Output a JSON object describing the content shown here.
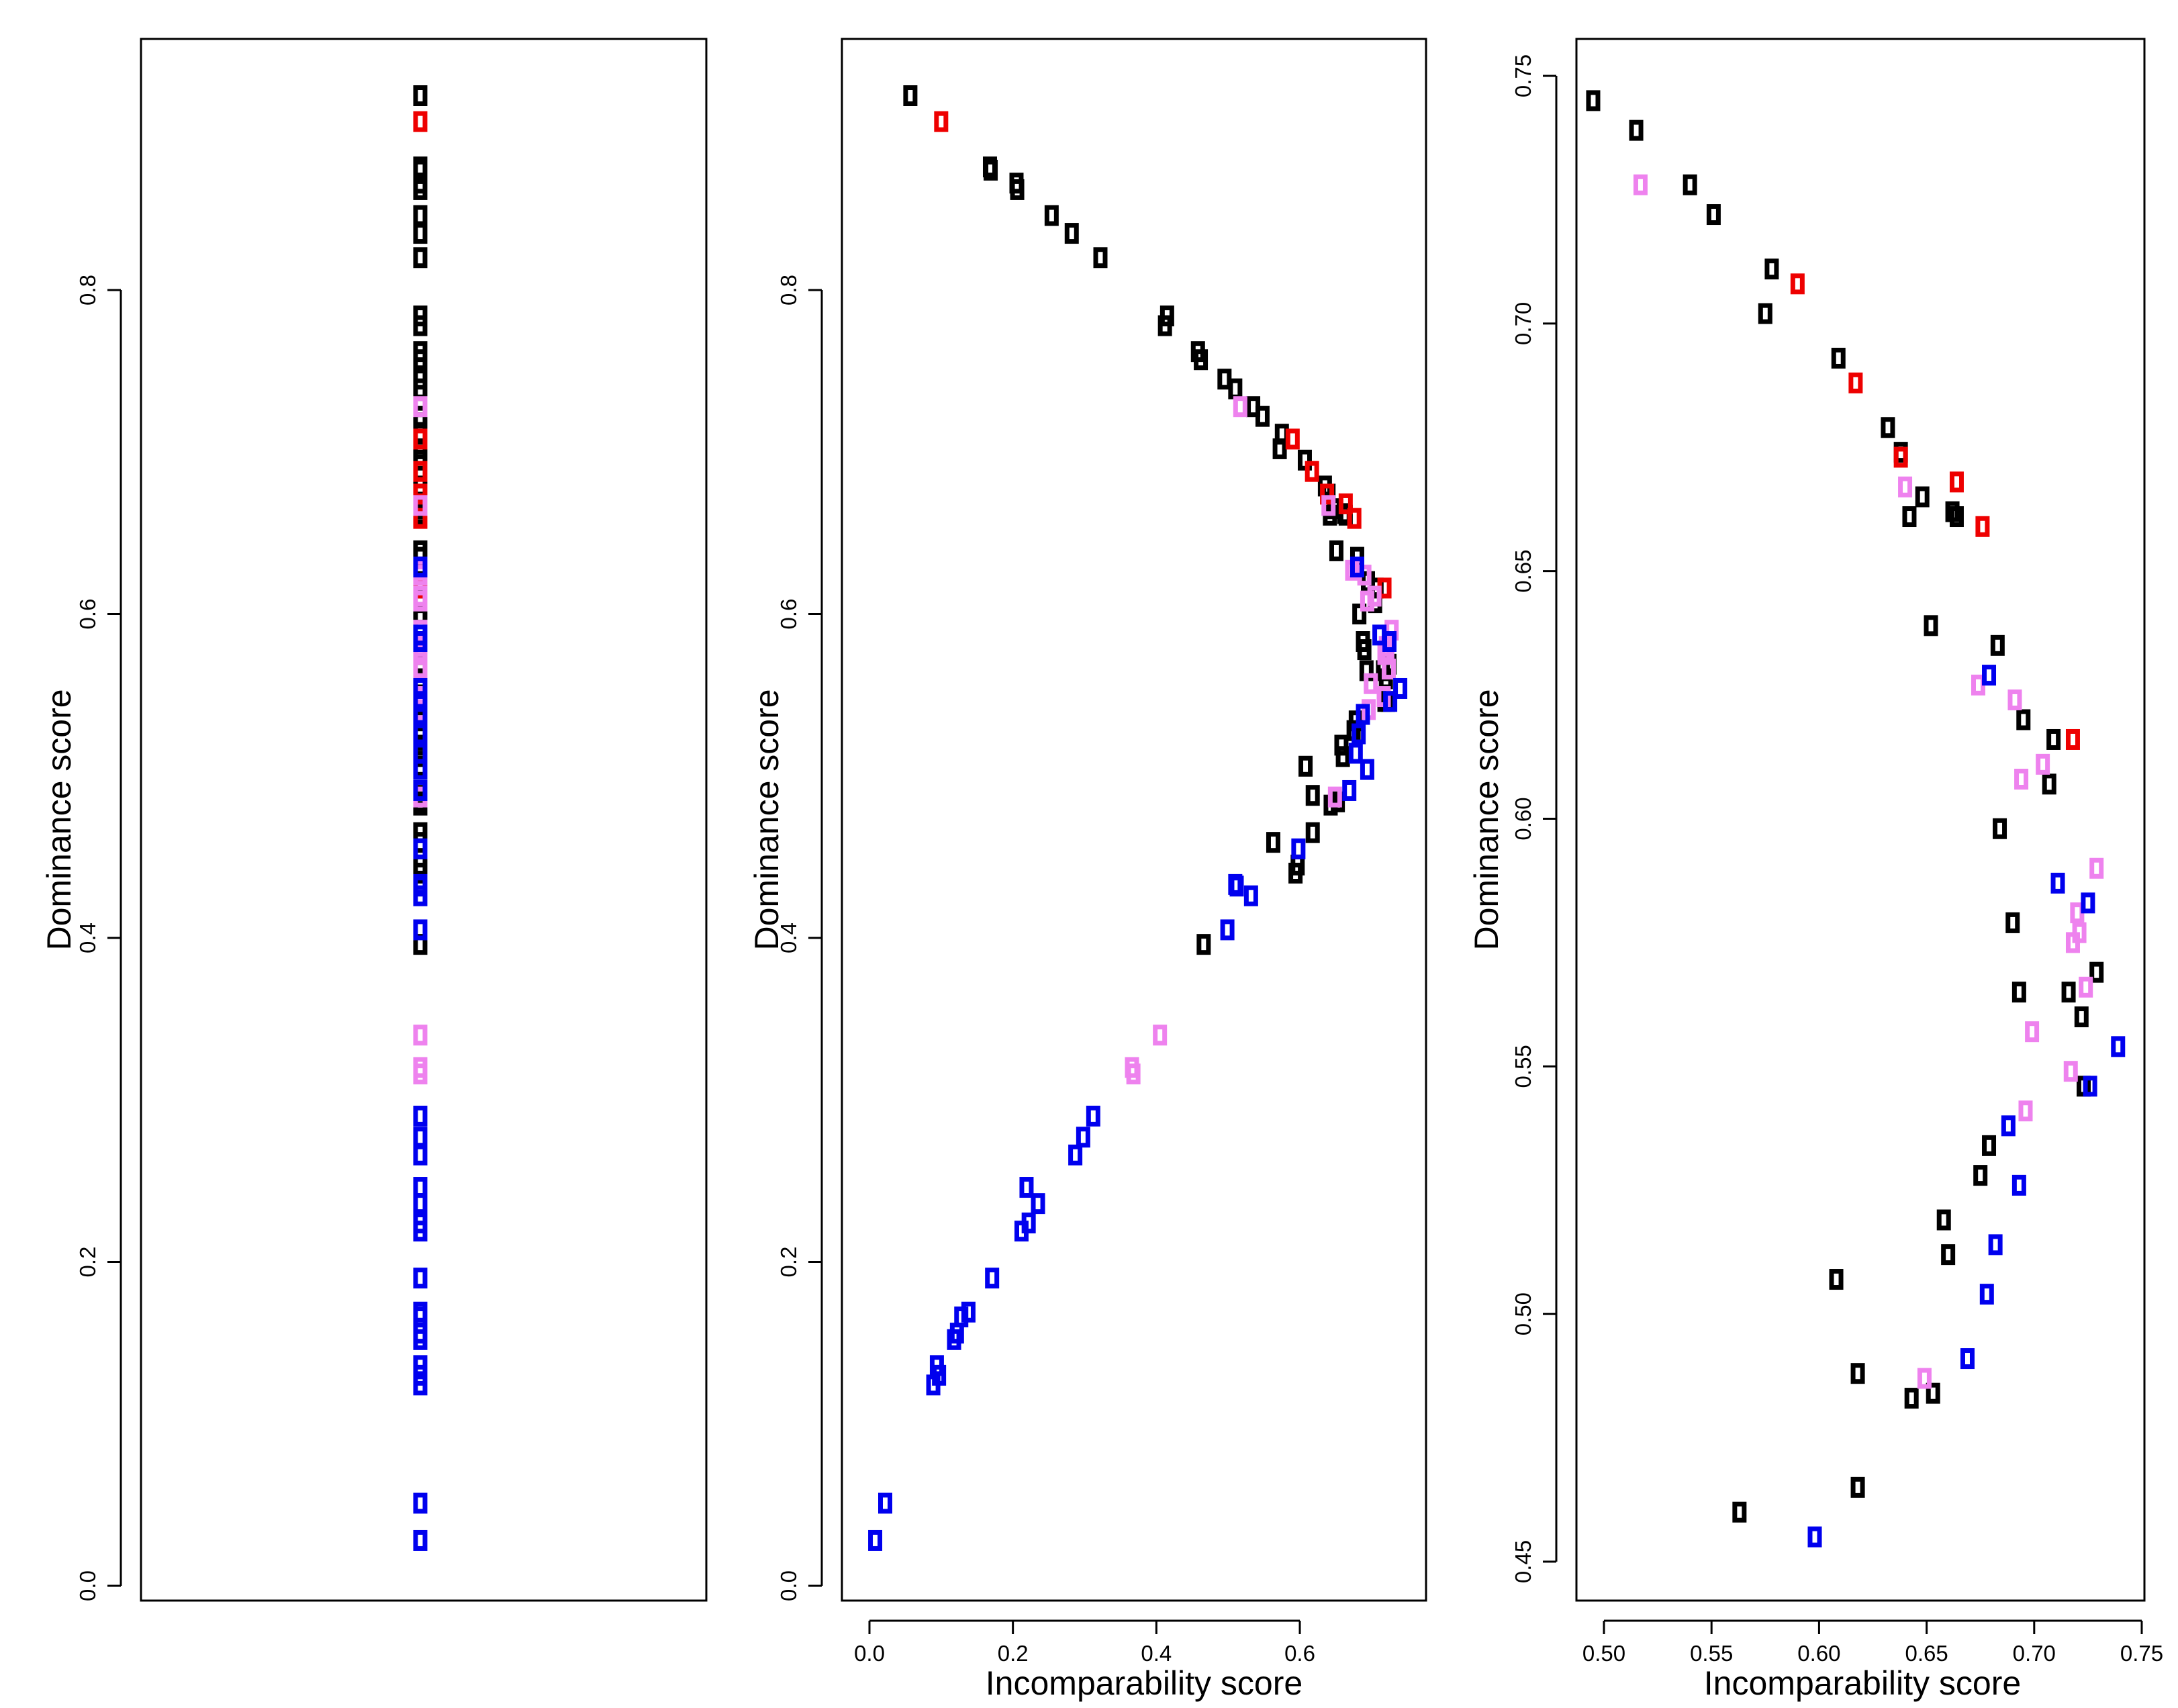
{
  "colors": {
    "black": "#000000",
    "red": "#ee0000",
    "violet": "#ee82ee",
    "blue": "#0000ee"
  },
  "chart_data": [
    {
      "type": "scatter",
      "panel": "left",
      "title": "",
      "xlabel": "",
      "ylabel": "Dominance score",
      "ylim": [
        0.0,
        0.95
      ],
      "yticks": [
        "0.0",
        "0.2",
        "0.4",
        "0.6",
        "0.8"
      ],
      "x_constant": 0.5,
      "note": "All points share a single x position; y values match the middle panel dominance scores.",
      "series": [
        {
          "name": "black",
          "color": "black",
          "y": [
            0.92,
            0.876,
            0.874,
            0.866,
            0.862,
            0.846,
            0.835,
            0.82,
            0.784,
            0.778,
            0.762,
            0.757,
            0.745,
            0.739,
            0.728,
            0.722,
            0.711,
            0.702,
            0.695,
            0.679,
            0.674,
            0.665,
            0.661,
            0.662,
            0.661,
            0.639,
            0.635,
            0.62,
            0.616,
            0.607,
            0.6,
            0.583,
            0.578,
            0.569,
            0.565,
            0.565,
            0.56,
            0.546,
            0.546,
            0.534,
            0.528,
            0.519,
            0.512,
            0.506,
            0.488,
            0.484,
            0.482,
            0.465,
            0.459,
            0.445,
            0.44,
            0.396
          ]
        },
        {
          "name": "red",
          "color": "red",
          "y": [
            0.904,
            0.708,
            0.688,
            0.674,
            0.668,
            0.659,
            0.616
          ]
        },
        {
          "name": "violet",
          "color": "violet",
          "y": [
            0.728,
            0.667,
            0.627,
            0.624,
            0.611,
            0.608,
            0.59,
            0.58,
            0.577,
            0.575,
            0.566,
            0.557,
            0.549,
            0.541,
            0.487,
            0.34,
            0.32,
            0.316
          ]
        },
        {
          "name": "blue",
          "color": "blue",
          "y": [
            0.629,
            0.587,
            0.583,
            0.554,
            0.546,
            0.538,
            0.526,
            0.514,
            0.504,
            0.491,
            0.455,
            0.433,
            0.432,
            0.426,
            0.405,
            0.29,
            0.277,
            0.266,
            0.246,
            0.236,
            0.224,
            0.219,
            0.19,
            0.169,
            0.166,
            0.156,
            0.152,
            0.136,
            0.13,
            0.124,
            0.051,
            0.028
          ]
        }
      ]
    },
    {
      "type": "scatter",
      "panel": "middle",
      "title": "",
      "xlabel": "Incomparability score",
      "ylabel": "Dominance score",
      "xlim": [
        0.0,
        0.76
      ],
      "ylim": [
        0.0,
        0.95
      ],
      "xticks": [
        "0.0",
        "0.2",
        "0.4",
        "0.6"
      ],
      "yticks": [
        "0.0",
        "0.2",
        "0.4",
        "0.6",
        "0.8"
      ],
      "series": [
        {
          "name": "black",
          "color": "black",
          "points": [
            [
              0.057,
              0.92
            ],
            [
              0.168,
              0.876
            ],
            [
              0.169,
              0.874
            ],
            [
              0.205,
              0.866
            ],
            [
              0.206,
              0.862
            ],
            [
              0.254,
              0.846
            ],
            [
              0.282,
              0.835
            ],
            [
              0.322,
              0.82
            ],
            [
              0.415,
              0.784
            ],
            [
              0.412,
              0.778
            ],
            [
              0.458,
              0.762
            ],
            [
              0.462,
              0.757
            ],
            [
              0.495,
              0.745
            ],
            [
              0.51,
              0.739
            ],
            [
              0.535,
              0.728
            ],
            [
              0.548,
              0.722
            ],
            [
              0.575,
              0.711
            ],
            [
              0.572,
              0.702
            ],
            [
              0.607,
              0.695
            ],
            [
              0.635,
              0.679
            ],
            [
              0.64,
              0.674
            ],
            [
              0.648,
              0.665
            ],
            [
              0.642,
              0.661
            ],
            [
              0.662,
              0.662
            ],
            [
              0.664,
              0.661
            ],
            [
              0.651,
              0.639
            ],
            [
              0.68,
              0.635
            ],
            [
              0.695,
              0.62
            ],
            [
              0.707,
              0.616
            ],
            [
              0.705,
              0.607
            ],
            [
              0.683,
              0.6
            ],
            [
              0.688,
              0.583
            ],
            [
              0.69,
              0.578
            ],
            [
              0.725,
              0.569
            ],
            [
              0.716,
              0.565
            ],
            [
              0.693,
              0.565
            ],
            [
              0.72,
              0.56
            ],
            [
              0.723,
              0.546
            ],
            [
              0.718,
              0.546
            ],
            [
              0.678,
              0.534
            ],
            [
              0.675,
              0.528
            ],
            [
              0.658,
              0.519
            ],
            [
              0.66,
              0.512
            ],
            [
              0.608,
              0.506
            ],
            [
              0.618,
              0.488
            ],
            [
              0.653,
              0.484
            ],
            [
              0.643,
              0.482
            ],
            [
              0.618,
              0.465
            ],
            [
              0.563,
              0.459
            ],
            [
              0.597,
              0.445
            ],
            [
              0.594,
              0.44
            ],
            [
              0.466,
              0.396
            ]
          ]
        },
        {
          "name": "red",
          "color": "red",
          "points": [
            [
              0.1,
              0.904
            ],
            [
              0.59,
              0.708
            ],
            [
              0.617,
              0.688
            ],
            [
              0.638,
              0.674
            ],
            [
              0.664,
              0.668
            ],
            [
              0.676,
              0.659
            ],
            [
              0.718,
              0.616
            ]
          ]
        },
        {
          "name": "violet",
          "color": "violet",
          "points": [
            [
              0.517,
              0.728
            ],
            [
              0.64,
              0.667
            ],
            [
              0.673,
              0.627
            ],
            [
              0.69,
              0.624
            ],
            [
              0.704,
              0.611
            ],
            [
              0.694,
              0.608
            ],
            [
              0.728,
              0.59
            ],
            [
              0.72,
              0.58
            ],
            [
              0.722,
              0.577
            ],
            [
              0.718,
              0.575
            ],
            [
              0.724,
              0.566
            ],
            [
              0.699,
              0.557
            ],
            [
              0.717,
              0.549
            ],
            [
              0.696,
              0.541
            ],
            [
              0.649,
              0.487
            ],
            [
              0.405,
              0.34
            ],
            [
              0.366,
              0.32
            ],
            [
              0.368,
              0.316
            ]
          ]
        },
        {
          "name": "blue",
          "color": "blue",
          "points": [
            [
              0.68,
              0.629
            ],
            [
              0.711,
              0.587
            ],
            [
              0.725,
              0.583
            ],
            [
              0.74,
              0.554
            ],
            [
              0.726,
              0.546
            ],
            [
              0.688,
              0.538
            ],
            [
              0.682,
              0.526
            ],
            [
              0.678,
              0.514
            ],
            [
              0.694,
              0.504
            ],
            [
              0.669,
              0.491
            ],
            [
              0.598,
              0.455
            ],
            [
              0.51,
              0.433
            ],
            [
              0.512,
              0.432
            ],
            [
              0.532,
              0.426
            ],
            [
              0.499,
              0.405
            ],
            [
              0.312,
              0.29
            ],
            [
              0.298,
              0.277
            ],
            [
              0.287,
              0.266
            ],
            [
              0.219,
              0.246
            ],
            [
              0.235,
              0.236
            ],
            [
              0.222,
              0.224
            ],
            [
              0.212,
              0.219
            ],
            [
              0.171,
              0.19
            ],
            [
              0.138,
              0.169
            ],
            [
              0.128,
              0.166
            ],
            [
              0.122,
              0.156
            ],
            [
              0.118,
              0.152
            ],
            [
              0.094,
              0.136
            ],
            [
              0.097,
              0.13
            ],
            [
              0.089,
              0.124
            ],
            [
              0.022,
              0.051
            ],
            [
              0.008,
              0.028
            ]
          ]
        }
      ]
    },
    {
      "type": "scatter",
      "panel": "right",
      "title": "",
      "xlabel": "Incomparability score",
      "ylabel": "Dominance score",
      "xlim": [
        0.49,
        0.76
      ],
      "ylim": [
        0.445,
        0.755
      ],
      "xticks": [
        "0.50",
        "0.55",
        "0.60",
        "0.65",
        "0.70",
        "0.75"
      ],
      "yticks": [
        "0.45",
        "0.50",
        "0.55",
        "0.60",
        "0.65",
        "0.70",
        "0.75"
      ],
      "series": [
        {
          "name": "black",
          "color": "black",
          "points": [
            [
              0.495,
              0.745
            ],
            [
              0.515,
              0.739
            ],
            [
              0.54,
              0.728
            ],
            [
              0.551,
              0.722
            ],
            [
              0.578,
              0.711
            ],
            [
              0.575,
              0.702
            ],
            [
              0.609,
              0.693
            ],
            [
              0.632,
              0.679
            ],
            [
              0.638,
              0.674
            ],
            [
              0.648,
              0.665
            ],
            [
              0.642,
              0.661
            ],
            [
              0.662,
              0.662
            ],
            [
              0.664,
              0.661
            ],
            [
              0.652,
              0.639
            ],
            [
              0.683,
              0.635
            ],
            [
              0.695,
              0.62
            ],
            [
              0.709,
              0.616
            ],
            [
              0.707,
              0.607
            ],
            [
              0.684,
              0.598
            ],
            [
              0.69,
              0.579
            ],
            [
              0.693,
              0.565
            ],
            [
              0.729,
              0.569
            ],
            [
              0.716,
              0.565
            ],
            [
              0.722,
              0.56
            ],
            [
              0.723,
              0.546
            ],
            [
              0.679,
              0.534
            ],
            [
              0.675,
              0.528
            ],
            [
              0.658,
              0.519
            ],
            [
              0.66,
              0.512
            ],
            [
              0.608,
              0.507
            ],
            [
              0.618,
              0.488
            ],
            [
              0.653,
              0.484
            ],
            [
              0.643,
              0.483
            ],
            [
              0.618,
              0.465
            ],
            [
              0.563,
              0.46
            ]
          ]
        },
        {
          "name": "red",
          "color": "red",
          "points": [
            [
              0.59,
              0.708
            ],
            [
              0.617,
              0.688
            ],
            [
              0.638,
              0.673
            ],
            [
              0.664,
              0.668
            ],
            [
              0.676,
              0.659
            ],
            [
              0.718,
              0.616
            ]
          ]
        },
        {
          "name": "violet",
          "color": "violet",
          "points": [
            [
              0.517,
              0.728
            ],
            [
              0.64,
              0.667
            ],
            [
              0.674,
              0.627
            ],
            [
              0.691,
              0.624
            ],
            [
              0.704,
              0.611
            ],
            [
              0.694,
              0.608
            ],
            [
              0.729,
              0.59
            ],
            [
              0.72,
              0.581
            ],
            [
              0.721,
              0.577
            ],
            [
              0.718,
              0.575
            ],
            [
              0.724,
              0.566
            ],
            [
              0.699,
              0.557
            ],
            [
              0.717,
              0.549
            ],
            [
              0.696,
              0.541
            ],
            [
              0.649,
              0.487
            ]
          ]
        },
        {
          "name": "blue",
          "color": "blue",
          "points": [
            [
              0.679,
              0.629
            ],
            [
              0.711,
              0.587
            ],
            [
              0.725,
              0.583
            ],
            [
              0.739,
              0.554
            ],
            [
              0.726,
              0.546
            ],
            [
              0.688,
              0.538
            ],
            [
              0.693,
              0.526
            ],
            [
              0.682,
              0.514
            ],
            [
              0.678,
              0.504
            ],
            [
              0.669,
              0.491
            ],
            [
              0.598,
              0.455
            ]
          ]
        }
      ]
    }
  ]
}
